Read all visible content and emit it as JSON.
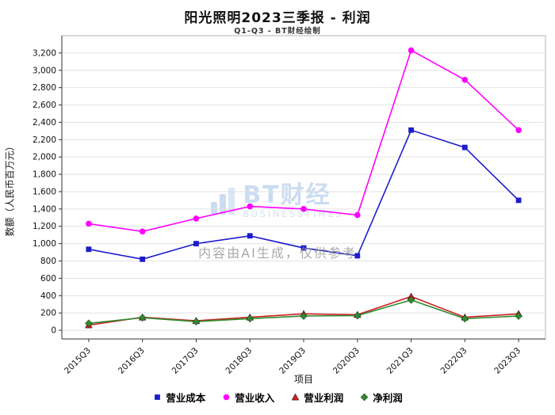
{
  "title": "阳光照明2023三季报 - 利润",
  "subtitle": "Q1-Q3 - BT财经绘制",
  "watermark": {
    "brand": "BT财经",
    "brand_sub": "BUSINESSTIMES",
    "disclaimer": "内容由AI生成，仅供参考",
    "brand_color": "#9fc0e8"
  },
  "chart_data": {
    "type": "line",
    "title": "阳光照明2023三季报 - 利润",
    "subtitle": "Q1-Q3 - BT财经绘制",
    "xlabel": "项目",
    "ylabel": "数额（人民币百万元）",
    "categories": [
      "2015Q3",
      "2016Q3",
      "2017Q3",
      "2018Q3",
      "2019Q3",
      "2020Q3",
      "2021Q3",
      "2022Q3",
      "2023Q3"
    ],
    "series": [
      {
        "name": "营业成本",
        "marker": "square",
        "color": "#1c1ccd",
        "values": [
          935,
          820,
          1000,
          1090,
          950,
          860,
          2310,
          2110,
          1500
        ]
      },
      {
        "name": "营业收入",
        "marker": "circle",
        "color": "#ff00ff",
        "values": [
          1230,
          1140,
          1290,
          1430,
          1400,
          1330,
          3230,
          2890,
          2310
        ]
      },
      {
        "name": "营业利润",
        "marker": "triangle",
        "color": "#cc2020",
        "values": [
          60,
          150,
          110,
          150,
          190,
          180,
          390,
          150,
          190
        ]
      },
      {
        "name": "净利润",
        "marker": "diamond",
        "color": "#2e8b2e",
        "values": [
          80,
          145,
          100,
          135,
          165,
          170,
          350,
          135,
          165
        ]
      }
    ],
    "ylim": [
      -100,
      3400
    ],
    "ytick_range": [
      0,
      3200
    ],
    "ytick_step": 200,
    "grid": true,
    "legend_position": "bottom"
  }
}
